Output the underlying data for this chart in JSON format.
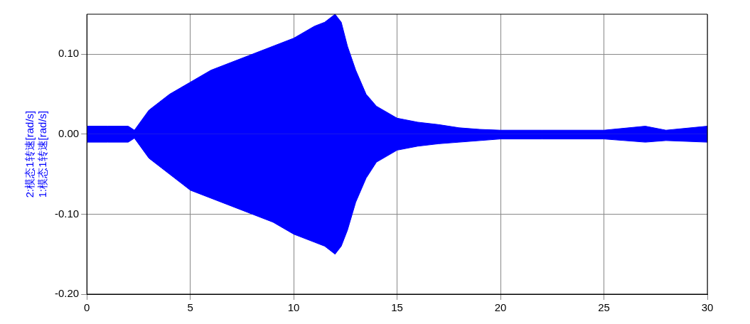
{
  "chart_data": {
    "type": "area",
    "ylabel": "2:模态1转速[rad/s]\n1:模态1转速[rad/s]",
    "x": [
      0,
      1,
      2,
      2.3,
      3,
      4,
      5,
      6,
      7,
      8,
      9,
      10,
      11,
      11.5,
      12,
      12.3,
      12.6,
      13,
      13.5,
      14,
      15,
      16,
      17,
      18,
      19,
      20,
      22,
      25,
      27,
      28,
      30
    ],
    "series": [
      {
        "color": "#0000ff",
        "values": [
          0.01,
          0.01,
          0.01,
          0.005,
          0.03,
          0.05,
          0.065,
          0.08,
          0.09,
          0.1,
          0.11,
          0.12,
          0.135,
          0.14,
          0.15,
          0.14,
          0.11,
          0.08,
          0.05,
          0.035,
          0.02,
          0.015,
          0.012,
          0.008,
          0.006,
          0.005,
          0.005,
          0.005,
          0.01,
          0.005,
          0.01
        ]
      },
      {
        "color": "#0000ff",
        "values": [
          -0.01,
          -0.01,
          -0.01,
          -0.005,
          -0.03,
          -0.05,
          -0.07,
          -0.08,
          -0.09,
          -0.1,
          -0.11,
          -0.125,
          -0.135,
          -0.14,
          -0.15,
          -0.14,
          -0.12,
          -0.085,
          -0.055,
          -0.035,
          -0.02,
          -0.015,
          -0.012,
          -0.01,
          -0.008,
          -0.006,
          -0.006,
          -0.006,
          -0.01,
          -0.008,
          -0.01
        ]
      }
    ],
    "xlim": [
      0,
      30
    ],
    "xticks": [
      0,
      5,
      10,
      15,
      20,
      25,
      30
    ],
    "ylim": [
      -0.2,
      0.15
    ],
    "yticks": [
      {
        "value": -0.2,
        "label": "-0.20"
      },
      {
        "value": -0.1,
        "label": "-0.10"
      },
      {
        "value": 0,
        "label": "0.00"
      },
      {
        "value": 0.1,
        "label": "0.10"
      }
    ],
    "grid": true,
    "legend": false
  }
}
